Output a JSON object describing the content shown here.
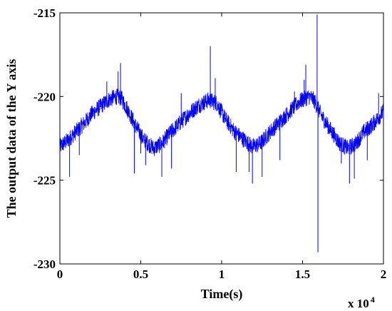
{
  "chart_data": {
    "type": "line",
    "title": "",
    "xlabel": "Time(s)",
    "ylabel": "The output data of the Y axis",
    "x_scale_factor_text": "x 10",
    "x_scale_factor_exp": "4",
    "xlim": [
      0,
      20000
    ],
    "ylim": [
      -230,
      -215
    ],
    "x_ticks": [
      0,
      5000,
      10000,
      15000,
      20000
    ],
    "x_tick_labels": [
      "0",
      "0.5",
      "1",
      "1.5",
      "2"
    ],
    "y_ticks": [
      -230,
      -225,
      -220,
      -215
    ],
    "y_tick_labels": [
      "-230",
      "-225",
      "-220",
      "-215"
    ],
    "grid": false,
    "legend": "none",
    "series": [
      {
        "color": "#0000ff",
        "x": [
          0,
          500,
          1000,
          1500,
          2000,
          2500,
          3000,
          3500,
          3800,
          4200,
          4700,
          5200,
          5800,
          6300,
          6800,
          7400,
          8000,
          8600,
          9200,
          9700,
          10200,
          10800,
          11400,
          11900,
          12400,
          13000,
          13600,
          14200,
          14800,
          15400,
          15700,
          16200,
          16800,
          17300,
          17800,
          18300,
          18800,
          19300,
          20000
        ],
        "y": [
          -223.0,
          -222.6,
          -222.1,
          -221.6,
          -221.0,
          -220.6,
          -220.2,
          -220.0,
          -220.1,
          -220.8,
          -221.8,
          -222.6,
          -223.1,
          -222.8,
          -222.2,
          -221.6,
          -221.0,
          -220.5,
          -220.2,
          -220.4,
          -221.3,
          -222.1,
          -222.6,
          -223.0,
          -222.8,
          -222.1,
          -221.5,
          -220.9,
          -220.3,
          -220.0,
          -220.2,
          -221.2,
          -222.1,
          -222.8,
          -223.1,
          -222.8,
          -222.1,
          -221.7,
          -220.9
        ]
      }
    ],
    "spikes": [
      {
        "x": 600,
        "y": -224.8
      },
      {
        "x": 1200,
        "y": -223.5
      },
      {
        "x": 2900,
        "y": -219.1
      },
      {
        "x": 3600,
        "y": -218.5
      },
      {
        "x": 3750,
        "y": -218.0
      },
      {
        "x": 4600,
        "y": -224.6
      },
      {
        "x": 5000,
        "y": -223.4
      },
      {
        "x": 5300,
        "y": -224.1
      },
      {
        "x": 6300,
        "y": -224.8
      },
      {
        "x": 6900,
        "y": -224.3
      },
      {
        "x": 7500,
        "y": -219.8
      },
      {
        "x": 9300,
        "y": -217.0
      },
      {
        "x": 9600,
        "y": -218.9
      },
      {
        "x": 10900,
        "y": -224.5
      },
      {
        "x": 11700,
        "y": -224.5
      },
      {
        "x": 11900,
        "y": -225.2
      },
      {
        "x": 12500,
        "y": -224.8
      },
      {
        "x": 13600,
        "y": -223.8
      },
      {
        "x": 14500,
        "y": -219.7
      },
      {
        "x": 15100,
        "y": -219.0
      },
      {
        "x": 15200,
        "y": -218.1
      },
      {
        "x": 15900,
        "y": -215.1
      },
      {
        "x": 15950,
        "y": -229.3
      },
      {
        "x": 17400,
        "y": -224.0
      },
      {
        "x": 17900,
        "y": -225.2
      },
      {
        "x": 18200,
        "y": -224.9
      },
      {
        "x": 19000,
        "y": -223.8
      },
      {
        "x": 19700,
        "y": -219.8
      }
    ]
  }
}
